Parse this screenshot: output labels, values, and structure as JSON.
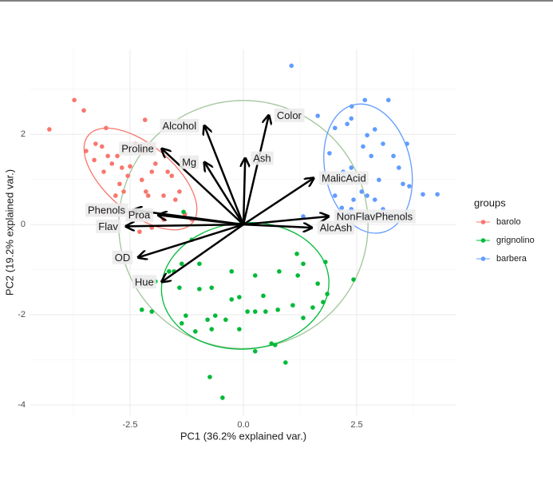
{
  "chart_data": {
    "type": "scatter",
    "xlabel": "PC1 (36.2% explained var.)",
    "ylabel": "PC2 (19.2% explained var.)",
    "legend_title": "groups",
    "legend": "right",
    "grid": true,
    "xlim": [
      -4.7,
      4.7
    ],
    "ylim": [
      -4.23,
      3.88
    ],
    "xticks": [
      -2.5,
      {
        "value": 0,
        "label": "0.0"
      },
      2.5
    ],
    "yticks": [
      -4,
      -2,
      0,
      2
    ],
    "xminor": [
      -3.75,
      -1.25,
      1.25,
      3.75
    ],
    "yminor": [
      -3,
      -1,
      1,
      3
    ],
    "circle": {
      "r": 2.75,
      "color": "#a6c8a0"
    },
    "series": [
      {
        "name": "barolo",
        "color": "#F8766D",
        "ellipse": {
          "cx": -2.27,
          "cy": 1.01,
          "rx": 1.5,
          "ry": 0.75,
          "angle": 40
        },
        "x": [
          -4.28,
          -3.73,
          -3.52,
          -3.03,
          -3.47,
          -3.29,
          -3.12,
          -3.08,
          -2.9,
          -2.78,
          -2.73,
          -2.64,
          -2.55,
          -2.5,
          -2.38,
          -2.2,
          -2.15,
          -2.1,
          -2.02,
          -1.94,
          -1.76,
          -1.67,
          -1.58,
          -1.5,
          -1.41,
          -2.11,
          -2.55,
          -3.08,
          -2.02,
          -1.76,
          -1.29,
          -1.14,
          -2.17,
          -2.55,
          -2.82,
          -3.26,
          -2.29,
          -2.99,
          -2.68,
          -2.24
        ],
        "values": [
          2.11,
          2.76,
          2.53,
          2.14,
          1.63,
          1.43,
          1.73,
          1.17,
          1.35,
          1.52,
          0.9,
          0.73,
          1.08,
          1.29,
          1.79,
          1.61,
          0.73,
          0.64,
          1.17,
          1.35,
          0.64,
          1.17,
          1.08,
          0.55,
          0.73,
          0.19,
          0.28,
          0.28,
          -0.07,
          0.11,
          0.23,
          0.11,
          2.32,
          1.7,
          0.64,
          1.79,
          -0.16,
          1.52,
          1.26,
          0.99
        ]
      },
      {
        "name": "grignolino",
        "color": "#00BA38",
        "ellipse": {
          "cx": 0.04,
          "cy": -1.36,
          "rx": 1.85,
          "ry": 1.4,
          "angle": -5
        },
        "x": [
          -0.74,
          -0.46,
          0.93,
          0.26,
          0.62,
          0.7,
          -0.09,
          -0.7,
          -1.06,
          -1.36,
          -1.27,
          -0.79,
          -0.39,
          0.09,
          0.26,
          0.49,
          0.76,
          1.09,
          1.32,
          1.53,
          1.76,
          1.85,
          1.64,
          1.2,
          0.79,
          0.26,
          -0.26,
          -0.7,
          -0.97,
          -1.41,
          -1.64,
          -1.94,
          -2.24,
          -2.02,
          -1.14,
          -1.36,
          1.18,
          1.32,
          1.81,
          2.43,
          -0.09,
          0.44,
          -0.26,
          -0.62,
          -0.97,
          -1.32,
          -1.53
        ],
        "values": [
          -3.38,
          -3.84,
          -3.06,
          -2.81,
          -2.64,
          -2.67,
          -2.32,
          -2.32,
          -2.37,
          -2.19,
          -2.02,
          -2.11,
          -2.11,
          -1.93,
          -1.93,
          -1.93,
          -1.89,
          -1.79,
          -2.07,
          -1.84,
          -1.72,
          -1.54,
          -1.31,
          -1.13,
          -1.04,
          -1.13,
          -1.04,
          -1.4,
          -1.43,
          -1.4,
          -1.04,
          -1.26,
          -1.89,
          -1.93,
          -0.34,
          -0.87,
          -0.65,
          -0.87,
          -0.83,
          -1.22,
          -1.61,
          -1.58,
          -1.66,
          -2.02,
          -0.87,
          0.28,
          -1.04
        ]
      },
      {
        "name": "barbera",
        "color": "#619CFF",
        "ellipse": {
          "cx": 2.75,
          "cy": 1.24,
          "rx": 0.95,
          "ry": 1.45,
          "angle": -12
        },
        "x": [
          1.06,
          2.68,
          3.2,
          2.39,
          2.38,
          2.29,
          2.02,
          1.64,
          2.9,
          2.73,
          2.64,
          3.08,
          3.61,
          2.82,
          1.9,
          3.43,
          2.38,
          2.2,
          2.99,
          3.52,
          3.66,
          2.61,
          2.73,
          2.9,
          2.43,
          2.17,
          2.38,
          3.08,
          2.32,
          3.17,
          3.96,
          4.28,
          2.64,
          1.32,
          3.31,
          2.02
        ],
        "values": [
          3.52,
          2.76,
          2.76,
          2.62,
          2.35,
          2.23,
          2.14,
          2.41,
          2.11,
          1.98,
          1.73,
          1.79,
          1.79,
          1.52,
          1.58,
          1.26,
          1.26,
          1.17,
          0.99,
          0.9,
          0.85,
          0.73,
          0.64,
          0.55,
          0.55,
          0.37,
          0.34,
          0.34,
          0.23,
          0.23,
          0.67,
          0.67,
          0.18,
          0.18,
          1.52,
          0.64
        ]
      }
    ],
    "arrows": [
      {
        "name": "Alcohol",
        "x": -0.86,
        "y": 2.19
      },
      {
        "name": "Color",
        "x": 0.56,
        "y": 2.42
      },
      {
        "name": "Proline",
        "x": -1.8,
        "y": 1.68
      },
      {
        "name": "Mg",
        "x": -0.86,
        "y": 1.38
      },
      {
        "name": "Ash",
        "x": 0.04,
        "y": 1.47
      },
      {
        "name": "MalicAcid",
        "x": 1.55,
        "y": 1.03
      },
      {
        "name": "Phenols",
        "x": -2.43,
        "y": 0.32
      },
      {
        "name": "Proa",
        "x": -1.88,
        "y": 0.21
      },
      {
        "name": "Flav",
        "x": -2.59,
        "y": -0.04
      },
      {
        "name": "NonFlavPhenols",
        "x": 1.88,
        "y": 0.18
      },
      {
        "name": "AlcAsh",
        "x": 1.51,
        "y": -0.07
      },
      {
        "name": "OD",
        "x": -2.32,
        "y": -0.73
      },
      {
        "name": "Hue",
        "x": -1.8,
        "y": -1.27
      }
    ]
  }
}
